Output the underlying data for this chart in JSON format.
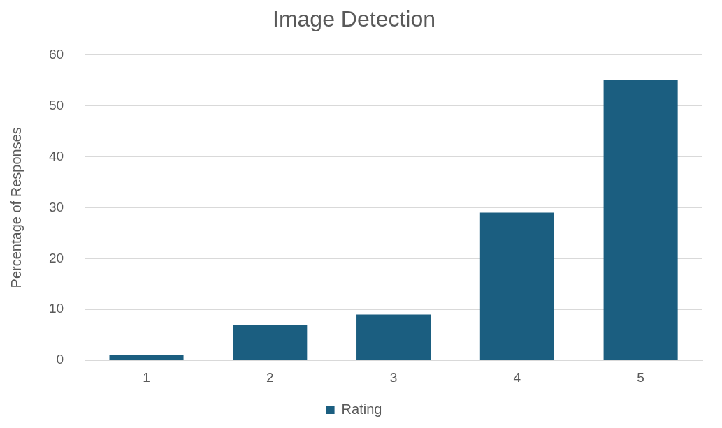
{
  "chart_data": {
    "type": "bar",
    "title": "Image Detection",
    "ylabel": "Percentage of Responses",
    "categories": [
      "1",
      "2",
      "3",
      "4",
      "5"
    ],
    "series": [
      {
        "name": "Rating",
        "color": "#1b5e80",
        "values": [
          1,
          7,
          9,
          29,
          55
        ]
      }
    ],
    "ylim": [
      0,
      60
    ],
    "yticks": [
      0,
      10,
      20,
      30,
      40,
      50,
      60
    ],
    "grid": "y",
    "legend": "bottom"
  }
}
